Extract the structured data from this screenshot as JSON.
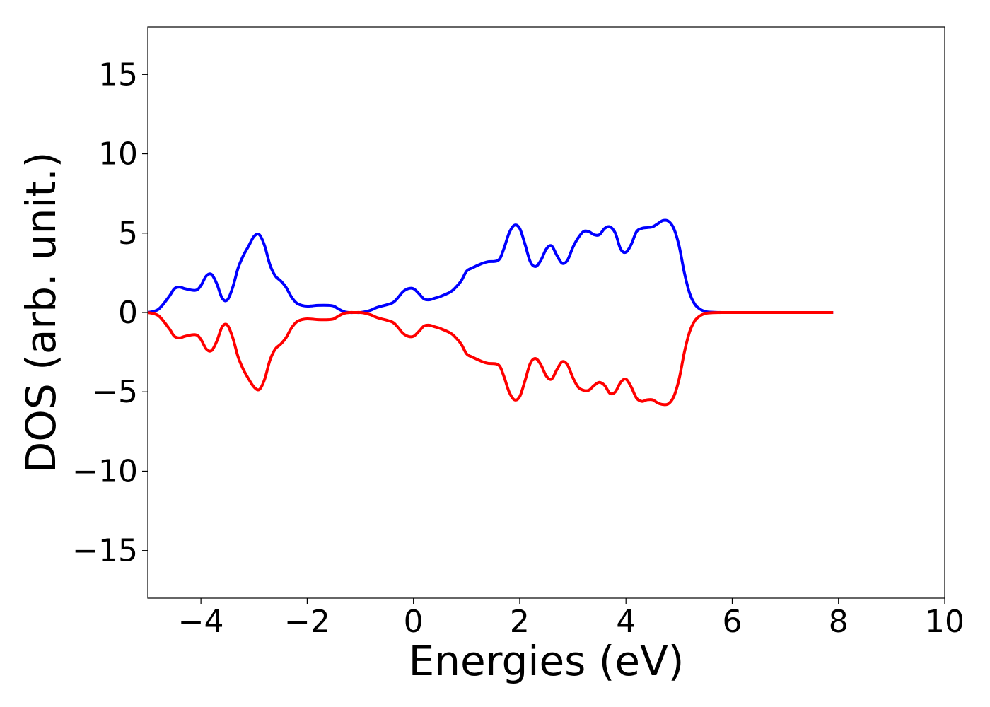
{
  "chart_data": {
    "type": "line",
    "title": "",
    "xlabel": "Energies (eV)",
    "ylabel": "DOS (arb. unit.)",
    "xlim": [
      -5,
      10
    ],
    "ylim": [
      -18,
      18
    ],
    "xticks": [
      -4,
      -2,
      0,
      2,
      4,
      6,
      8,
      10
    ],
    "xtick_labels": [
      "−4",
      "−2",
      "0",
      "2",
      "4",
      "6",
      "8",
      "10"
    ],
    "yticks": [
      -15,
      -10,
      -5,
      0,
      5,
      10,
      15
    ],
    "ytick_labels": [
      "−15",
      "−10",
      "−5",
      "0",
      "5",
      "10",
      "15"
    ],
    "grid": false,
    "legend": "none",
    "series": [
      {
        "color": "#0000ff",
        "x": [
          -5.0,
          -4.8,
          -4.6,
          -4.5,
          -4.4,
          -4.3,
          -4.1,
          -4.0,
          -3.9,
          -3.8,
          -3.7,
          -3.6,
          -3.5,
          -3.4,
          -3.3,
          -3.2,
          -3.1,
          -3.0,
          -2.9,
          -2.8,
          -2.7,
          -2.6,
          -2.5,
          -2.4,
          -2.3,
          -2.2,
          -2.1,
          -2.0,
          -1.9,
          -1.8,
          -1.6,
          -1.5,
          -1.4,
          -1.3,
          -1.2,
          -1.1,
          -1.0,
          -0.9,
          -0.8,
          -0.7,
          -0.6,
          -0.4,
          -0.3,
          -0.2,
          -0.1,
          0.0,
          0.1,
          0.2,
          0.3,
          0.4,
          0.5,
          0.7,
          0.8,
          0.9,
          1.0,
          1.1,
          1.3,
          1.4,
          1.6,
          1.7,
          1.8,
          1.9,
          2.0,
          2.1,
          2.2,
          2.3,
          2.4,
          2.5,
          2.6,
          2.7,
          2.8,
          2.9,
          3.0,
          3.1,
          3.2,
          3.3,
          3.4,
          3.5,
          3.6,
          3.7,
          3.8,
          3.9,
          4.0,
          4.1,
          4.2,
          4.3,
          4.4,
          4.5,
          4.6,
          4.7,
          4.8,
          4.9,
          5.0,
          5.1,
          5.2,
          5.3,
          5.4,
          5.5,
          5.6,
          5.8,
          6.0,
          7.0,
          7.9
        ],
        "y": [
          0.0,
          0.2,
          1.0,
          1.5,
          1.6,
          1.5,
          1.4,
          1.7,
          2.3,
          2.4,
          1.8,
          0.9,
          0.8,
          1.6,
          2.8,
          3.6,
          4.2,
          4.8,
          4.9,
          4.2,
          3.0,
          2.3,
          2.0,
          1.6,
          1.0,
          0.6,
          0.45,
          0.4,
          0.42,
          0.45,
          0.45,
          0.4,
          0.2,
          0.05,
          0.0,
          0.0,
          0.0,
          0.05,
          0.15,
          0.3,
          0.4,
          0.6,
          0.9,
          1.3,
          1.5,
          1.5,
          1.2,
          0.85,
          0.8,
          0.9,
          1.0,
          1.3,
          1.6,
          2.0,
          2.6,
          2.8,
          3.1,
          3.2,
          3.3,
          4.0,
          5.0,
          5.5,
          5.3,
          4.3,
          3.2,
          2.9,
          3.3,
          4.0,
          4.2,
          3.6,
          3.1,
          3.3,
          4.1,
          4.7,
          5.1,
          5.1,
          4.9,
          4.9,
          5.3,
          5.4,
          5.0,
          4.0,
          3.8,
          4.3,
          5.1,
          5.3,
          5.35,
          5.4,
          5.6,
          5.8,
          5.75,
          5.3,
          4.2,
          2.5,
          1.2,
          0.5,
          0.2,
          0.06,
          0.02,
          0.0,
          0.0,
          0.0,
          0.0
        ]
      },
      {
        "color": "#ff0000",
        "x": [
          -5.0,
          -4.8,
          -4.6,
          -4.5,
          -4.4,
          -4.3,
          -4.1,
          -4.0,
          -3.9,
          -3.8,
          -3.7,
          -3.6,
          -3.5,
          -3.4,
          -3.3,
          -3.2,
          -3.1,
          -3.0,
          -2.9,
          -2.8,
          -2.7,
          -2.6,
          -2.5,
          -2.4,
          -2.3,
          -2.2,
          -2.1,
          -2.0,
          -1.9,
          -1.8,
          -1.6,
          -1.5,
          -1.4,
          -1.3,
          -1.2,
          -1.1,
          -1.0,
          -0.9,
          -0.8,
          -0.7,
          -0.6,
          -0.4,
          -0.3,
          -0.2,
          -0.1,
          0.0,
          0.1,
          0.2,
          0.3,
          0.4,
          0.5,
          0.7,
          0.8,
          0.9,
          1.0,
          1.1,
          1.3,
          1.4,
          1.6,
          1.7,
          1.8,
          1.9,
          2.0,
          2.1,
          2.2,
          2.3,
          2.4,
          2.5,
          2.6,
          2.7,
          2.8,
          2.9,
          3.0,
          3.1,
          3.2,
          3.3,
          3.4,
          3.5,
          3.6,
          3.7,
          3.8,
          3.9,
          4.0,
          4.1,
          4.2,
          4.3,
          4.4,
          4.5,
          4.6,
          4.7,
          4.8,
          4.9,
          5.0,
          5.1,
          5.2,
          5.3,
          5.4,
          5.5,
          5.6,
          5.8,
          6.0,
          7.0,
          7.9
        ],
        "y": [
          0.0,
          -0.2,
          -1.0,
          -1.5,
          -1.6,
          -1.5,
          -1.4,
          -1.7,
          -2.3,
          -2.4,
          -1.8,
          -0.9,
          -0.8,
          -1.6,
          -2.8,
          -3.6,
          -4.2,
          -4.7,
          -4.85,
          -4.2,
          -3.0,
          -2.3,
          -2.0,
          -1.6,
          -1.0,
          -0.6,
          -0.45,
          -0.4,
          -0.42,
          -0.45,
          -0.45,
          -0.4,
          -0.2,
          -0.05,
          0.0,
          0.0,
          0.0,
          -0.05,
          -0.15,
          -0.3,
          -0.4,
          -0.6,
          -0.9,
          -1.3,
          -1.5,
          -1.5,
          -1.2,
          -0.85,
          -0.8,
          -0.9,
          -1.0,
          -1.3,
          -1.6,
          -2.0,
          -2.6,
          -2.8,
          -3.1,
          -3.2,
          -3.3,
          -4.0,
          -5.0,
          -5.5,
          -5.3,
          -4.3,
          -3.2,
          -2.9,
          -3.3,
          -4.0,
          -4.2,
          -3.6,
          -3.1,
          -3.3,
          -4.1,
          -4.7,
          -4.9,
          -4.9,
          -4.6,
          -4.4,
          -4.6,
          -5.1,
          -5.0,
          -4.4,
          -4.2,
          -4.7,
          -5.4,
          -5.6,
          -5.5,
          -5.5,
          -5.7,
          -5.8,
          -5.75,
          -5.3,
          -4.2,
          -2.5,
          -1.2,
          -0.5,
          -0.2,
          -0.06,
          -0.02,
          0.0,
          0.0,
          0.0,
          0.0
        ]
      }
    ]
  }
}
